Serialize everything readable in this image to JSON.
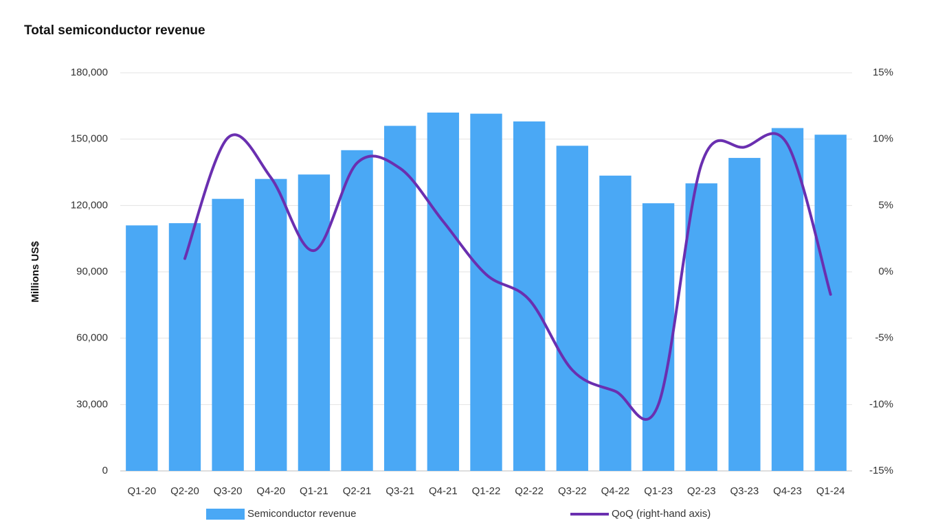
{
  "chart_data": {
    "type": "bar",
    "title": "Total semiconductor revenue",
    "y_label": "Millions US$",
    "categories": [
      "Q1-20",
      "Q2-20",
      "Q3-20",
      "Q4-20",
      "Q1-21",
      "Q2-21",
      "Q3-21",
      "Q4-21",
      "Q1-22",
      "Q2-22",
      "Q3-22",
      "Q4-22",
      "Q1-23",
      "Q2-23",
      "Q3-23",
      "Q4-23",
      "Q1-24"
    ],
    "series": [
      {
        "name": "Semiconductor revenue",
        "type": "bar",
        "color": "#4aa8f5",
        "values": [
          111000,
          112000,
          123000,
          132000,
          134000,
          145000,
          156000,
          162000,
          161500,
          158000,
          147000,
          133500,
          121000,
          130000,
          141500,
          155000,
          152000
        ]
      },
      {
        "name": "QoQ (right-hand axis)",
        "type": "line",
        "axis": "y2",
        "color": "#6a2fb0",
        "values": [
          null,
          1.0,
          10.1,
          7.1,
          1.6,
          8.2,
          7.8,
          3.8,
          -0.2,
          -2.1,
          -7.4,
          -9.0,
          -10.0,
          8.1,
          9.4,
          9.6,
          -1.7
        ]
      }
    ],
    "ylim": [
      0,
      180000
    ],
    "yticks": [
      0,
      {
        "value": 30000,
        "label": "30,000"
      },
      {
        "value": 60000,
        "label": "60,000"
      },
      {
        "value": 90000,
        "label": "90,000"
      },
      {
        "value": 120000,
        "label": "120,000"
      },
      {
        "value": 150000,
        "label": "150,000"
      },
      {
        "value": 180000,
        "label": "180,000"
      }
    ],
    "y2lim": [
      -15,
      15
    ],
    "y2ticks": [
      {
        "value": -15,
        "label": "-15%"
      },
      {
        "value": -10,
        "label": "-10%"
      },
      {
        "value": -5,
        "label": "-5%"
      },
      {
        "value": 0,
        "label": "0%"
      },
      {
        "value": 5,
        "label": "5%"
      },
      {
        "value": 10,
        "label": "10%"
      },
      {
        "value": 15,
        "label": "15%"
      }
    ],
    "grid": true,
    "legend": "bottom"
  }
}
